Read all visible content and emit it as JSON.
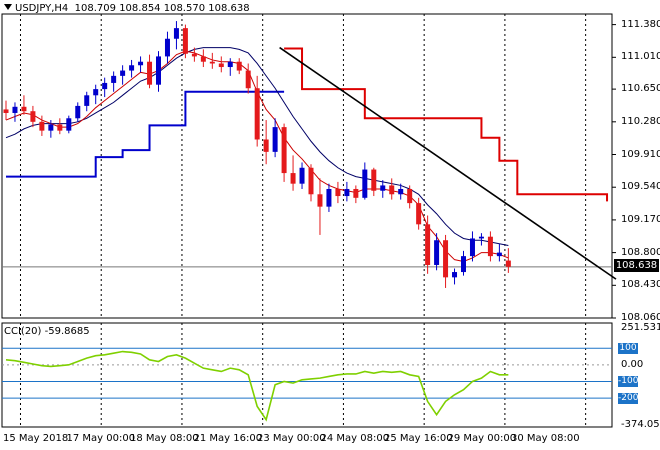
{
  "chart_title": {
    "symbol_tf": "USDJPY,H4",
    "ohlc": "108.709 108.854 108.570 108.638"
  },
  "current_price": "108.638",
  "price_axis": [
    "111.380",
    "111.010",
    "110.650",
    "110.280",
    "109.910",
    "109.540",
    "109.170",
    "108.800",
    "108.430",
    "108.060"
  ],
  "time_axis": [
    "15 May 2018",
    "17 May 00:00",
    "18 May 08:00",
    "21 May 16:00",
    "23 May 00:00",
    "24 May 08:00",
    "25 May 16:00",
    "29 May 00:00",
    "30 May 08:00"
  ],
  "cci": {
    "title": "CCI(20) -59.8685",
    "axis": [
      "251.5313",
      "100",
      "0.00",
      "-100",
      "-200",
      "-374.0531"
    ],
    "levels_badge": [
      "100",
      "-100",
      "-200"
    ]
  },
  "colors": {
    "bull": "#0000cc",
    "bear": "#e41a1c",
    "ma_fast": "#cc0000",
    "ma_slow": "#000066",
    "stop_blue": "#0000cc",
    "stop_red": "#dd0000",
    "trendline": "#000000",
    "cci_line": "#7fd000",
    "grid": "#000000"
  },
  "chart_data": {
    "type": "candlestick",
    "candles": [
      [
        110.42,
        110.52,
        110.3,
        110.38
      ],
      [
        110.38,
        110.5,
        110.28,
        110.45
      ],
      [
        110.45,
        110.58,
        110.36,
        110.4
      ],
      [
        110.4,
        110.46,
        110.22,
        110.28
      ],
      [
        110.28,
        110.35,
        110.12,
        110.18
      ],
      [
        110.18,
        110.3,
        110.1,
        110.25
      ],
      [
        110.25,
        110.32,
        110.14,
        110.18
      ],
      [
        110.18,
        110.35,
        110.15,
        110.32
      ],
      [
        110.32,
        110.5,
        110.28,
        110.46
      ],
      [
        110.46,
        110.62,
        110.4,
        110.58
      ],
      [
        110.58,
        110.7,
        110.48,
        110.65
      ],
      [
        110.65,
        110.78,
        110.56,
        110.72
      ],
      [
        110.72,
        110.85,
        110.62,
        110.8
      ],
      [
        110.8,
        110.92,
        110.7,
        110.86
      ],
      [
        110.86,
        110.98,
        110.78,
        110.92
      ],
      [
        110.92,
        111.02,
        110.84,
        110.96
      ],
      [
        110.96,
        111.04,
        110.66,
        110.7
      ],
      [
        110.7,
        111.08,
        110.62,
        111.02
      ],
      [
        111.02,
        111.3,
        110.94,
        111.22
      ],
      [
        111.22,
        111.42,
        111.1,
        111.34
      ],
      [
        111.34,
        111.38,
        111.0,
        111.05
      ],
      [
        111.05,
        111.12,
        110.96,
        111.02
      ],
      [
        111.02,
        111.1,
        110.9,
        110.96
      ],
      [
        110.96,
        111.06,
        110.88,
        110.94
      ],
      [
        110.94,
        111.02,
        110.84,
        110.9
      ],
      [
        110.9,
        111.0,
        110.8,
        110.96
      ],
      [
        110.96,
        111.0,
        110.82,
        110.86
      ],
      [
        110.86,
        110.94,
        110.6,
        110.66
      ],
      [
        110.66,
        110.8,
        110.0,
        110.08
      ],
      [
        110.08,
        110.3,
        109.8,
        109.94
      ],
      [
        109.94,
        110.32,
        109.88,
        110.22
      ],
      [
        110.22,
        110.26,
        109.6,
        109.7
      ],
      [
        109.7,
        109.9,
        109.5,
        109.58
      ],
      [
        109.58,
        109.82,
        109.52,
        109.76
      ],
      [
        109.76,
        109.8,
        109.38,
        109.46
      ],
      [
        109.46,
        109.64,
        109.0,
        109.32
      ],
      [
        109.32,
        109.58,
        109.26,
        109.52
      ],
      [
        109.52,
        109.6,
        109.36,
        109.44
      ],
      [
        109.44,
        109.6,
        109.38,
        109.52
      ],
      [
        109.52,
        109.56,
        109.36,
        109.42
      ],
      [
        109.42,
        109.82,
        109.4,
        109.74
      ],
      [
        109.74,
        109.76,
        109.44,
        109.5
      ],
      [
        109.5,
        109.62,
        109.42,
        109.56
      ],
      [
        109.56,
        109.64,
        109.4,
        109.46
      ],
      [
        109.46,
        109.58,
        109.4,
        109.52
      ],
      [
        109.52,
        109.56,
        109.3,
        109.36
      ],
      [
        109.36,
        109.42,
        109.06,
        109.12
      ],
      [
        109.12,
        109.22,
        108.56,
        108.66
      ],
      [
        108.66,
        109.02,
        108.6,
        108.94
      ],
      [
        108.94,
        109.0,
        108.4,
        108.52
      ],
      [
        108.52,
        108.62,
        108.44,
        108.58
      ],
      [
        108.58,
        108.82,
        108.54,
        108.76
      ],
      [
        108.76,
        109.04,
        108.7,
        108.96
      ],
      [
        108.96,
        109.02,
        108.88,
        108.98
      ],
      [
        108.98,
        109.04,
        108.7,
        108.76
      ],
      [
        108.76,
        108.9,
        108.7,
        108.8
      ],
      [
        108.71,
        108.85,
        108.57,
        108.64
      ]
    ],
    "ma_fast": [
      110.3,
      110.34,
      110.38,
      110.36,
      110.3,
      110.26,
      110.22,
      110.22,
      110.26,
      110.34,
      110.44,
      110.52,
      110.6,
      110.68,
      110.76,
      110.84,
      110.82,
      110.86,
      110.94,
      111.04,
      111.08,
      111.06,
      111.02,
      110.98,
      110.96,
      110.96,
      110.94,
      110.86,
      110.62,
      110.42,
      110.3,
      110.1,
      109.96,
      109.86,
      109.74,
      109.62,
      109.56,
      109.52,
      109.5,
      109.48,
      109.52,
      109.52,
      109.52,
      109.5,
      109.48,
      109.44,
      109.34,
      109.1,
      108.98,
      108.82,
      108.72,
      108.7,
      108.74,
      108.8,
      108.8,
      108.78,
      108.74
    ],
    "ma_slow": [
      110.1,
      110.14,
      110.2,
      110.24,
      110.26,
      110.26,
      110.26,
      110.26,
      110.28,
      110.32,
      110.38,
      110.44,
      110.5,
      110.58,
      110.66,
      110.74,
      110.78,
      110.84,
      110.92,
      111.0,
      111.06,
      111.1,
      111.12,
      111.12,
      111.12,
      111.12,
      111.1,
      111.06,
      110.94,
      110.8,
      110.66,
      110.5,
      110.34,
      110.2,
      110.06,
      109.94,
      109.84,
      109.76,
      109.7,
      109.66,
      109.64,
      109.62,
      109.6,
      109.58,
      109.56,
      109.52,
      109.46,
      109.34,
      109.24,
      109.12,
      109.02,
      108.96,
      108.94,
      108.94,
      108.92,
      108.9,
      108.88
    ],
    "stop_blue": [
      [
        0,
        109.66
      ],
      [
        8,
        109.66
      ],
      [
        10,
        109.88
      ],
      [
        13,
        109.96
      ],
      [
        16,
        110.24
      ],
      [
        20,
        110.62
      ],
      [
        31,
        110.62
      ]
    ],
    "stop_red": [
      [
        31,
        111.11
      ],
      [
        33,
        110.65
      ],
      [
        39,
        110.65
      ],
      [
        40,
        110.32
      ],
      [
        50,
        110.32
      ],
      [
        53,
        110.1
      ],
      [
        55,
        109.84
      ],
      [
        57,
        109.46
      ],
      [
        66,
        109.46
      ],
      [
        67,
        109.38
      ]
    ],
    "trendline": [
      [
        30.5,
        111.12
      ],
      [
        68,
        108.5
      ]
    ],
    "cci_values": [
      30,
      25,
      15,
      5,
      -5,
      -10,
      -5,
      0,
      20,
      40,
      55,
      60,
      70,
      80,
      75,
      65,
      30,
      20,
      50,
      60,
      40,
      10,
      -20,
      -30,
      -40,
      -20,
      -30,
      -60,
      -250,
      -330,
      -120,
      -100,
      -110,
      -90,
      -85,
      -80,
      -70,
      -60,
      -55,
      -55,
      -40,
      -50,
      -40,
      -45,
      -40,
      -60,
      -70,
      -220,
      -300,
      -220,
      -180,
      -150,
      -100,
      -80,
      -40,
      -60,
      -59.87
    ],
    "cci_ylim": [
      -374.0531,
      251.5313
    ],
    "price_ylim": [
      108.06,
      111.5
    ]
  }
}
